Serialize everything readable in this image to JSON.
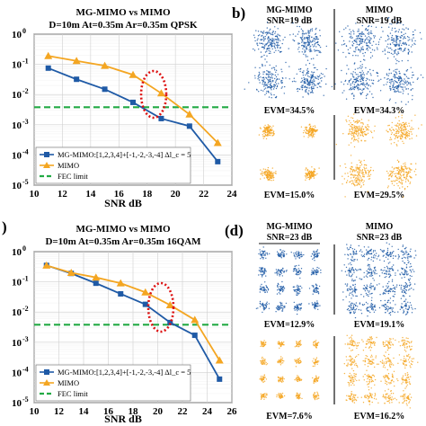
{
  "chart_data": [
    {
      "id": "a",
      "type": "line",
      "panel_letter": "",
      "title_lines": [
        "MG-MIMO vs MIMO",
        "D=10m At=0.35m Ar=0.35m QPSK"
      ],
      "xlabel": "SNR dB",
      "ylabel": "",
      "xlim": [
        10,
        24
      ],
      "ylim_log10": [
        -5,
        0
      ],
      "x_ticks": [
        "10",
        "12",
        "14",
        "16",
        "18",
        "20",
        "22",
        "24"
      ],
      "y_ticks": [
        "10^0",
        "10^-1",
        "10^-2",
        "10^-3",
        "10^-4",
        "10^-5"
      ],
      "log_y": true,
      "grid": true,
      "legend_position": "bottom-left",
      "fec_limit": 0.0038,
      "series": [
        {
          "name": "MG-MIMO:[1,2,3,4]+[-1,-2,-3,-4] Δl_c = 5",
          "color": "#1f5aa6",
          "marker": "square",
          "x": [
            11,
            13,
            15,
            17,
            19,
            21,
            23
          ],
          "y": [
            0.075,
            0.032,
            0.015,
            0.0055,
            0.0016,
            0.0009,
            6e-05
          ]
        },
        {
          "name": "MIMO",
          "color": "#f4a622",
          "marker": "triangle",
          "x": [
            11,
            13,
            15,
            17,
            19,
            21,
            23
          ],
          "y": [
            0.19,
            0.13,
            0.09,
            0.045,
            0.011,
            0.0022,
            0.00025
          ]
        },
        {
          "name": "FEC limit",
          "color": "#22aa44",
          "marker": "none",
          "dashed": true
        }
      ]
    },
    {
      "id": "c",
      "type": "line",
      "panel_letter": ")",
      "title_lines": [
        "MG-MIMO vs MIMO",
        "D=10m At=0.35m Ar=0.35m 16QAM"
      ],
      "xlabel": "SNR dB",
      "ylabel": "",
      "xlim": [
        10,
        26
      ],
      "ylim_log10": [
        -5,
        0
      ],
      "x_ticks": [
        "10",
        "12",
        "14",
        "16",
        "18",
        "20",
        "22",
        "24",
        "26"
      ],
      "y_ticks": [
        "10^0",
        "10^-1",
        "10^-2",
        "10^-3",
        "10^-4",
        "10^-5"
      ],
      "log_y": true,
      "grid": true,
      "legend_position": "bottom-left",
      "fec_limit": 0.0038,
      "series": [
        {
          "name": "MG-MIMO:[1,2,3,4]+[-1,-2,-3,-4] Δl_c = 5",
          "color": "#1f5aa6",
          "marker": "square",
          "x": [
            11,
            13,
            15,
            17,
            19,
            21,
            23,
            25
          ],
          "y": [
            0.35,
            0.19,
            0.09,
            0.04,
            0.018,
            0.0045,
            0.0017,
            6e-05
          ]
        },
        {
          "name": "MIMO",
          "color": "#f4a622",
          "marker": "triangle",
          "x": [
            11,
            13,
            15,
            17,
            19,
            21,
            23,
            25
          ],
          "y": [
            0.35,
            0.2,
            0.14,
            0.09,
            0.045,
            0.017,
            0.0055,
            0.00025
          ]
        },
        {
          "name": "FEC limit",
          "color": "#22aa44",
          "marker": "none",
          "dashed": true
        }
      ]
    }
  ],
  "constellations": {
    "b": {
      "panel_letter": "b)",
      "left_header": [
        "MG-MIMO",
        "SNR=19 dB"
      ],
      "right_header": [
        "MIMO",
        "SNR=19 dB"
      ],
      "top_left_evm": "EVM=34.5%",
      "top_right_evm": "EVM=34.3%",
      "bottom_left_evm": "EVM=15.0%",
      "bottom_right_evm": "EVM=29.5%",
      "blue_color": "#1f5aa6",
      "orange_color": "#f4a622"
    },
    "d": {
      "panel_letter": "(d)",
      "left_header": [
        "MG-MIMO",
        "SNR=23 dB"
      ],
      "right_header": [
        "MIMO",
        "SNR=23 dB"
      ],
      "top_left_evm": "EVM=12.9%",
      "top_right_evm": "EVM=19.1%",
      "bottom_left_evm": "EVM=7.6%",
      "bottom_right_evm": "EVM=16.2%",
      "blue_color": "#1f5aa6",
      "orange_color": "#f4a622"
    }
  },
  "annotations": {
    "ellipse_color": "#dd1111"
  }
}
